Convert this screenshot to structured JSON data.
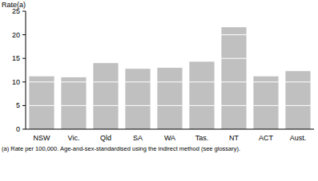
{
  "chart_data": {
    "type": "bar",
    "y_label": "Rate(a)",
    "categories": [
      "NSW",
      "Vic.",
      "Qld",
      "SA",
      "WA",
      "Tas.",
      "NT",
      "ACT",
      "Aust."
    ],
    "values": [
      11.2,
      11.0,
      14.0,
      12.8,
      13.0,
      14.3,
      21.6,
      11.2,
      12.3
    ],
    "color": "#c0c0c0",
    "ylim": [
      0,
      25
    ],
    "yticks": [
      0,
      5,
      10,
      15,
      20,
      25
    ],
    "grid": true,
    "annotation": "(a) Rate per 100,000. Age-and-sex-standardised using the indirect method (see glossary)."
  }
}
